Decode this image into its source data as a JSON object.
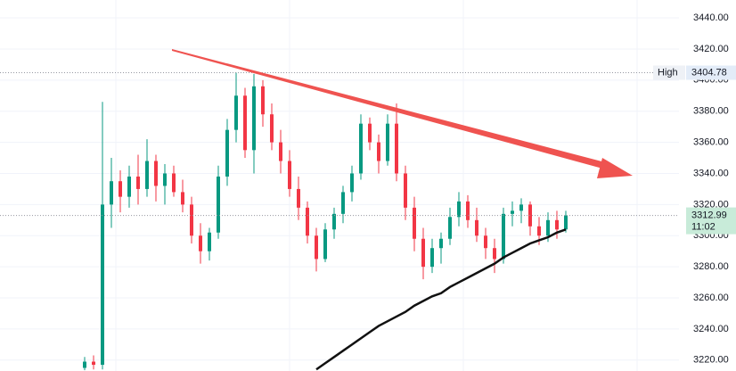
{
  "chart_data": {
    "type": "candlestick",
    "open": [
      3215,
      3219,
      3217,
      3320,
      3335,
      3325,
      3338,
      3330,
      3348,
      3332,
      3340,
      3328,
      3320,
      3300,
      3290,
      3302,
      3338,
      3368,
      3390,
      3355,
      3396,
      3378,
      3360,
      3348,
      3330,
      3318,
      3300,
      3285,
      3304,
      3314,
      3328,
      3340,
      3372,
      3360,
      3348,
      3372,
      3340,
      3318,
      3298,
      3280,
      3292,
      3298,
      3312,
      3322,
      3310,
      3300,
      3292,
      3285,
      3314,
      3316,
      3320,
      3306,
      3300,
      3310,
      3304
    ],
    "high": [
      3222,
      3223,
      3386,
      3350,
      3342,
      3345,
      3352,
      3362,
      3352,
      3346,
      3345,
      3336,
      3325,
      3308,
      3305,
      3345,
      3375,
      3404.78,
      3395,
      3404,
      3400,
      3385,
      3368,
      3355,
      3338,
      3322,
      3305,
      3308,
      3318,
      3332,
      3345,
      3378,
      3376,
      3365,
      3378,
      3385,
      3345,
      3325,
      3305,
      3298,
      3302,
      3318,
      3328,
      3326,
      3318,
      3305,
      3298,
      3318,
      3322,
      3324,
      3322,
      3312,
      3315,
      3316,
      3316
    ],
    "low": [
      3213.5,
      3214,
      3214,
      3305,
      3315,
      3318,
      3320,
      3325,
      3322,
      3320,
      3325,
      3315,
      3295,
      3282,
      3284,
      3298,
      3332,
      3360,
      3350,
      3340,
      3370,
      3355,
      3340,
      3325,
      3310,
      3295,
      3277,
      3283,
      3298,
      3308,
      3322,
      3336,
      3355,
      3340,
      3345,
      3335,
      3310,
      3290,
      3272,
      3276,
      3282,
      3294,
      3306,
      3305,
      3296,
      3285,
      3276,
      3282,
      3306,
      3308,
      3300,
      3294,
      3296,
      3298,
      3302
    ],
    "close": [
      3219,
      3217,
      3320,
      3335,
      3325,
      3338,
      3330,
      3348,
      3332,
      3340,
      3328,
      3320,
      3300,
      3290,
      3302,
      3338,
      3368,
      3390,
      3355,
      3396,
      3378,
      3360,
      3348,
      3330,
      3318,
      3300,
      3285,
      3304,
      3314,
      3328,
      3340,
      3372,
      3360,
      3348,
      3372,
      3340,
      3318,
      3298,
      3280,
      3292,
      3298,
      3312,
      3322,
      3310,
      3300,
      3292,
      3285,
      3314,
      3316,
      3320,
      3306,
      3300,
      3310,
      3304,
      3312.99
    ],
    "line_values": [
      null,
      null,
      null,
      null,
      null,
      null,
      null,
      null,
      null,
      null,
      null,
      null,
      null,
      null,
      null,
      null,
      null,
      null,
      null,
      null,
      null,
      null,
      null,
      null,
      null,
      null,
      3214,
      3218,
      3222,
      3226,
      3230,
      3234,
      3238,
      3242,
      3245,
      3248,
      3251,
      3255,
      3258,
      3261,
      3263,
      3267,
      3270,
      3273,
      3276,
      3279,
      3282,
      3286,
      3289,
      3292,
      3295,
      3297,
      3299,
      3302,
      3304
    ],
    "up_color": "#089981",
    "down_color": "#f23645",
    "line_color": "#111111",
    "ylim": [
      3213,
      3451.5
    ],
    "yticks": [
      {
        "value": 3220,
        "label": "3220.00"
      },
      {
        "value": 3240,
        "label": "3240.00"
      },
      {
        "value": 3260,
        "label": "3260.00"
      },
      {
        "value": 3280,
        "label": "3280.00"
      },
      {
        "value": 3300,
        "label": "3300.00"
      },
      {
        "value": 3320,
        "label": "3320.00"
      },
      {
        "value": 3340,
        "label": "3340.00"
      },
      {
        "value": 3360,
        "label": "3360.00"
      },
      {
        "value": 3380,
        "label": "3380.00"
      },
      {
        "value": 3400,
        "label": "3400.00"
      },
      {
        "value": 3420,
        "label": "3420.00"
      },
      {
        "value": 3440,
        "label": "3440.00"
      }
    ],
    "grid": true,
    "high_label": "High",
    "countdown": "11:02"
  }
}
